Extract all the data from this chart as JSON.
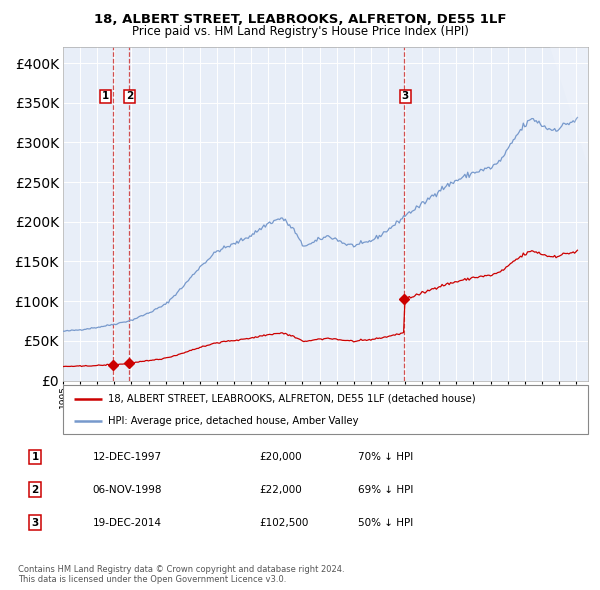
{
  "title1": "18, ALBERT STREET, LEABROOKS, ALFRETON, DE55 1LF",
  "title2": "Price paid vs. HM Land Registry's House Price Index (HPI)",
  "legend_label_red": "18, ALBERT STREET, LEABROOKS, ALFRETON, DE55 1LF (detached house)",
  "legend_label_blue": "HPI: Average price, detached house, Amber Valley",
  "table_rows": [
    {
      "num": "1",
      "date": "12-DEC-1997",
      "price": "£20,000",
      "hpi": "70% ↓ HPI"
    },
    {
      "num": "2",
      "date": "06-NOV-1998",
      "price": "£22,000",
      "hpi": "69% ↓ HPI"
    },
    {
      "num": "3",
      "date": "19-DEC-2014",
      "price": "£102,500",
      "hpi": "50% ↓ HPI"
    }
  ],
  "footer": "Contains HM Land Registry data © Crown copyright and database right 2024.\nThis data is licensed under the Open Government Licence v3.0.",
  "vline_dates": [
    1997.95,
    1998.85,
    2014.96
  ],
  "marker_dates": [
    1997.95,
    1998.85,
    2014.96
  ],
  "marker_prices": [
    20000,
    22000,
    102500
  ],
  "label_nums": [
    "1",
    "2",
    "3"
  ],
  "red_color": "#cc0000",
  "blue_color": "#7799cc",
  "bg_color": "#e8eef8",
  "grid_color": "#ffffff",
  "ylim": [
    0,
    420000
  ],
  "xlim_start": 1995.3,
  "xlim_end": 2025.7
}
